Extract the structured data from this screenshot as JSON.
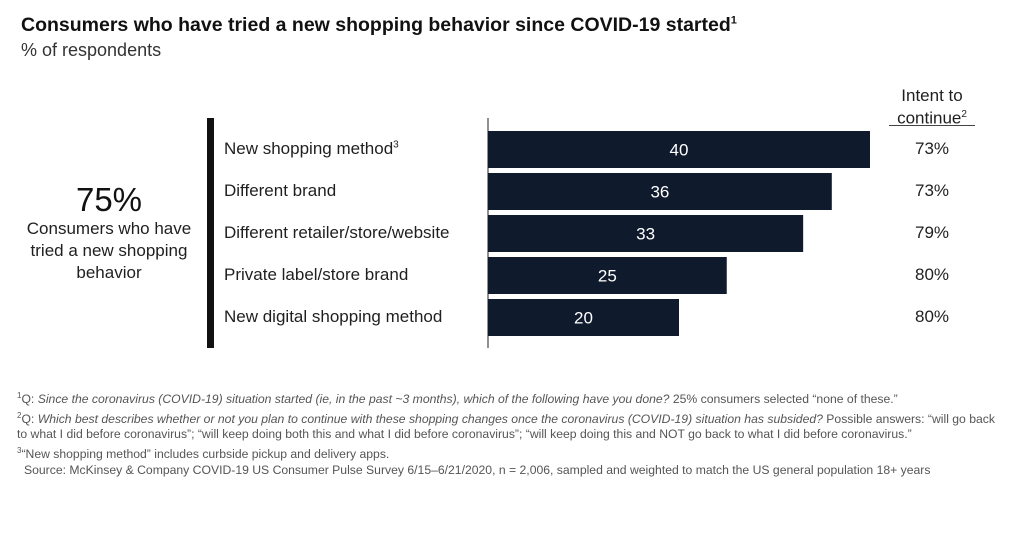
{
  "title": "Consumers who have tried a new shopping behavior since COVID-19 started",
  "title_note": "1",
  "subtitle": "% of respondents",
  "kpi": {
    "value": "75%",
    "label": "Consumers who have tried a new shopping behavior"
  },
  "intent_header": "Intent to continue",
  "intent_header_note": "2",
  "chart_data": {
    "type": "bar",
    "orientation": "horizontal",
    "categories": [
      "New shopping method",
      "Different brand",
      "Different retailer/store/website",
      "Private label/store brand",
      "New digital shopping method"
    ],
    "category_notes": [
      "3",
      "",
      "",
      "",
      ""
    ],
    "values": [
      40,
      36,
      33,
      25,
      20
    ],
    "intent_to_continue": [
      "73%",
      "73%",
      "79%",
      "80%",
      "80%"
    ],
    "bar_color": "#0f1a2d",
    "xlim": [
      0,
      40
    ]
  },
  "footnotes": [
    {
      "marker": "1",
      "prefix": "Q: ",
      "question": "Since the coronavirus (COVID-19) situation started (ie, in the past ~3 months), which of the following have you done?",
      "rest": " 25% consumers selected “none of these.”"
    },
    {
      "marker": "2",
      "prefix": "Q: ",
      "question": "Which best describes whether or not you plan to continue with these shopping changes once the coronavirus (COVID-19) situation has subsided?",
      "rest": " Possible answers: “will go back to what I did before coronavirus”; “will keep doing both this and what I did before coronavirus”; “will keep doing this and NOT go back to what I did before coronavirus.”"
    },
    {
      "marker": "3",
      "prefix": "",
      "question": "",
      "rest": "“New shopping method” includes curbside pickup and delivery apps."
    }
  ],
  "source": "Source: McKinsey & Company COVID-19 US Consumer Pulse Survey 6/15–6/21/2020, n = 2,006, sampled and weighted to match the US general population 18+ years"
}
